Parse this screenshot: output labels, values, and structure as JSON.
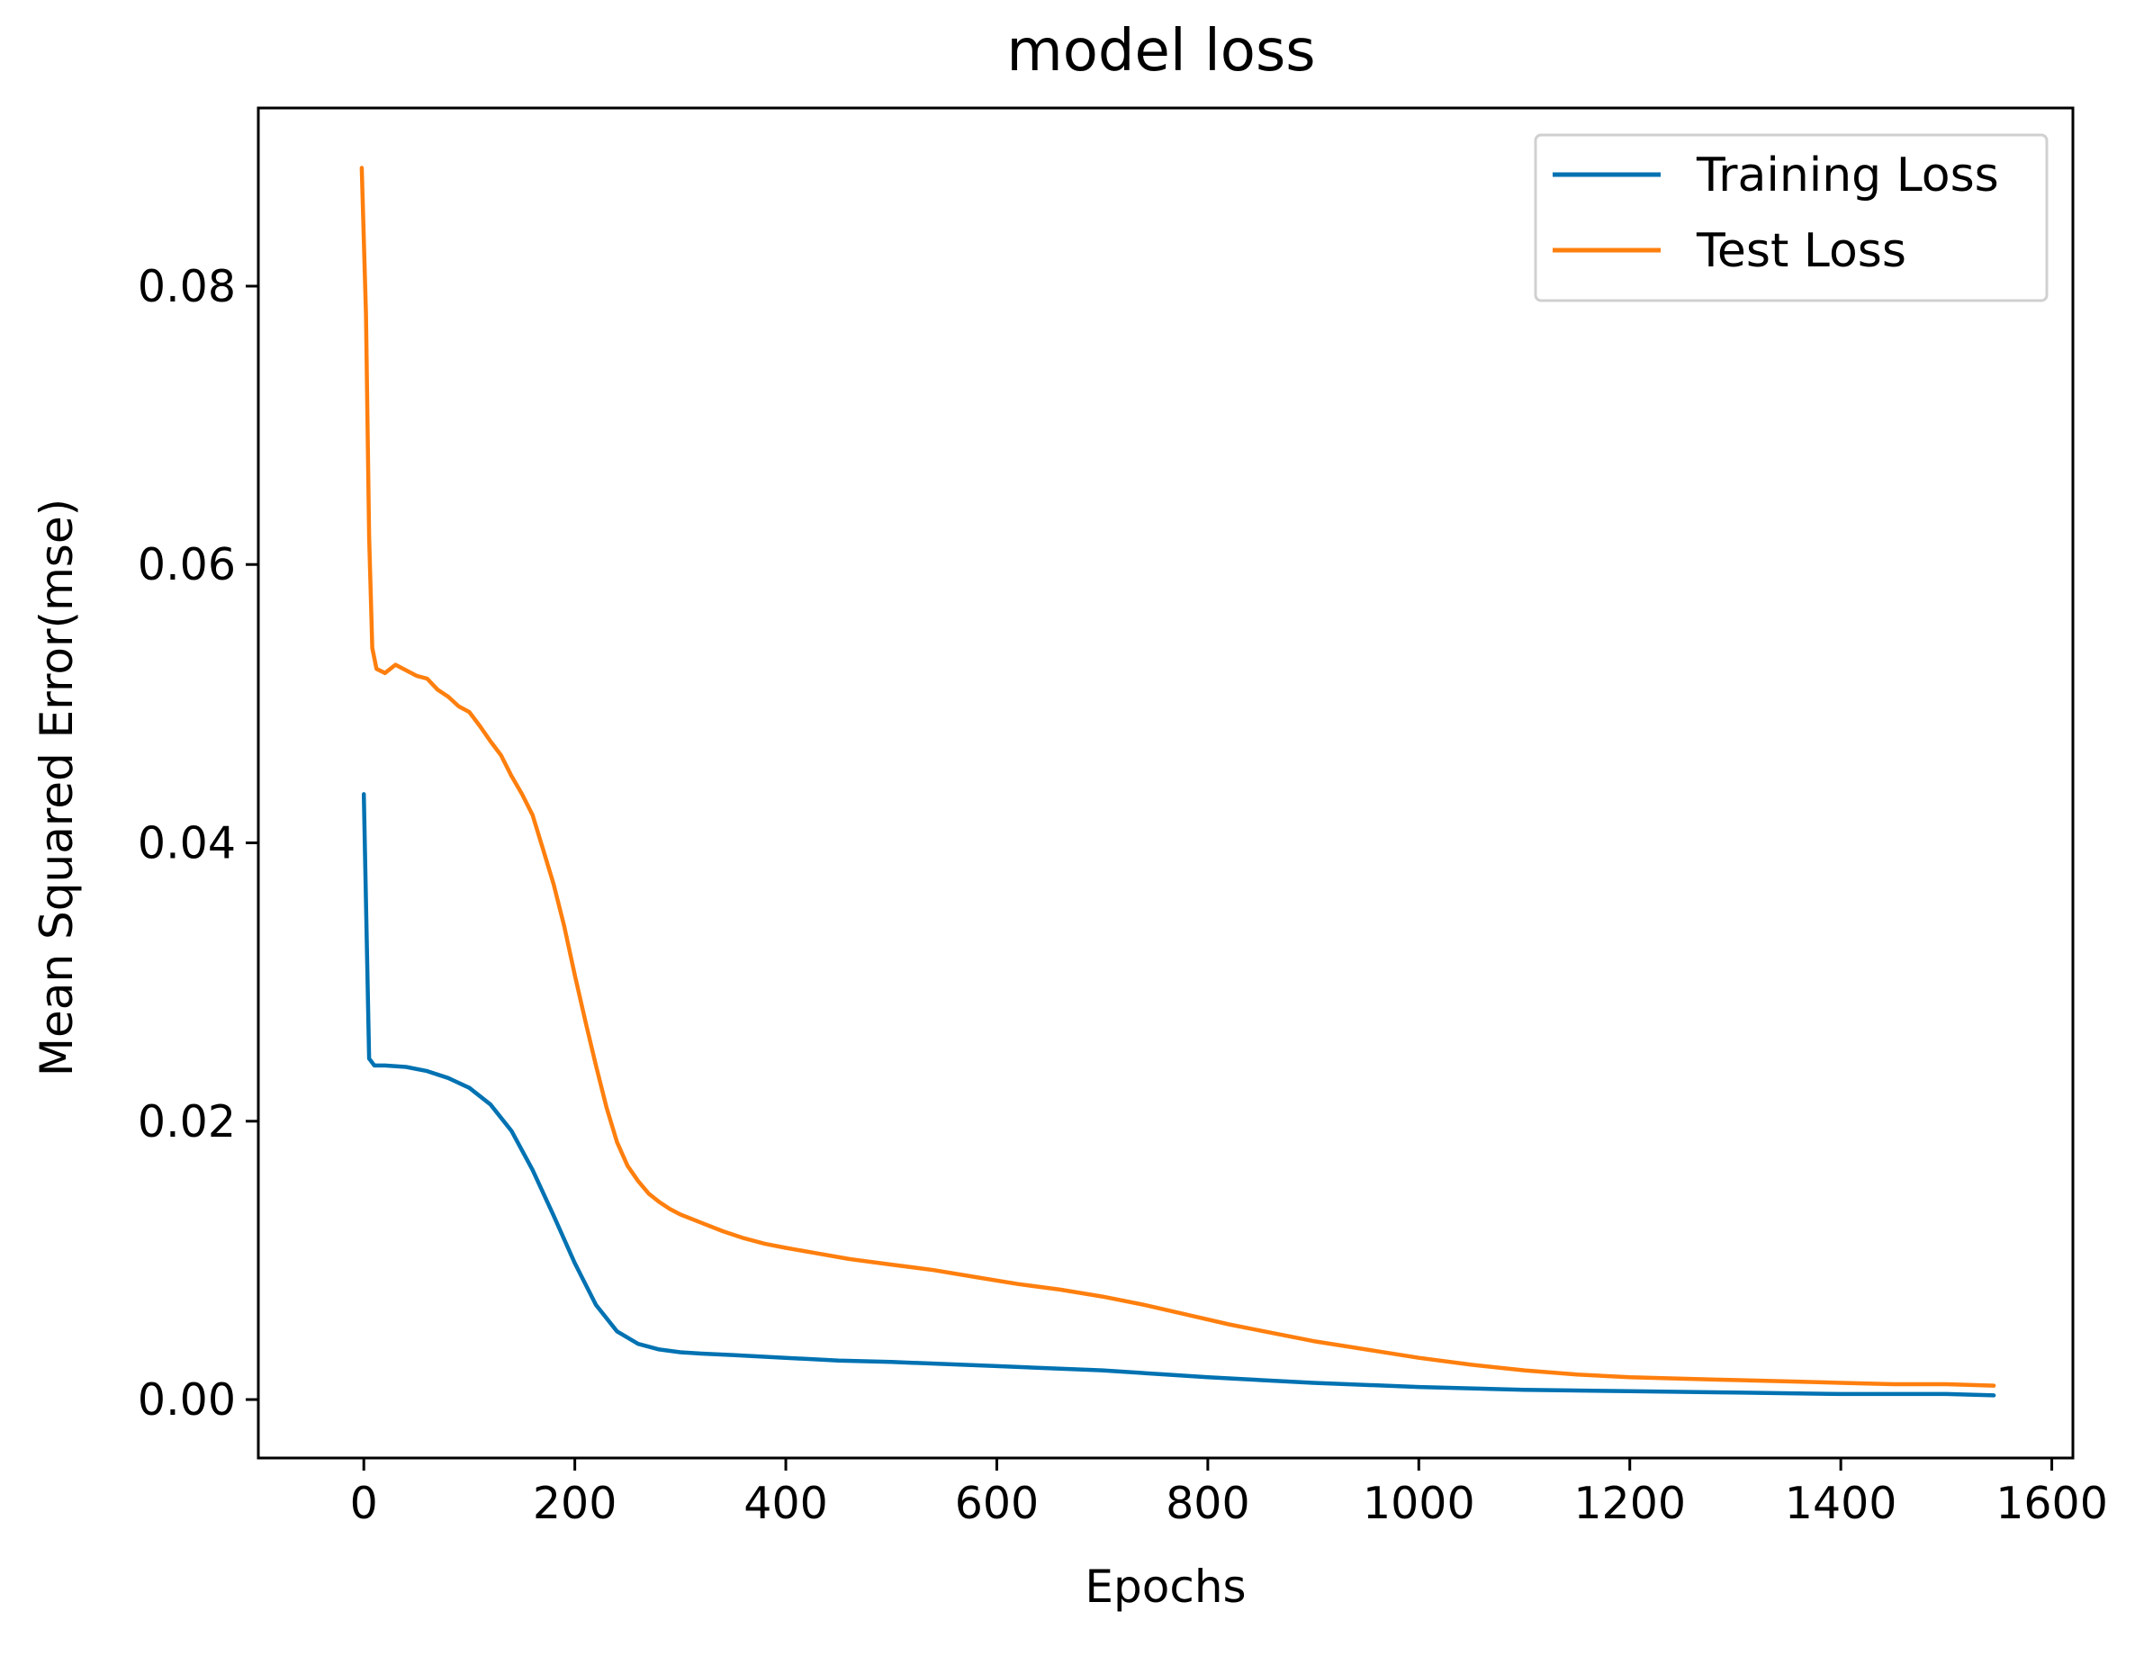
{
  "chart_data": {
    "type": "line",
    "title": "model loss",
    "xlabel": "Epochs",
    "ylabel": "Mean Squared Error(mse)",
    "xlim": [
      -100,
      1620
    ],
    "ylim": [
      -0.0042,
      0.0928
    ],
    "xticks": [
      0,
      200,
      400,
      600,
      800,
      1000,
      1200,
      1400,
      1600
    ],
    "xtick_labels": [
      "0",
      "200",
      "400",
      "600",
      "800",
      "1000",
      "1200",
      "1400",
      "1600"
    ],
    "yticks": [
      0.0,
      0.02,
      0.04,
      0.06,
      0.08
    ],
    "ytick_labels": [
      "0.00",
      "0.02",
      "0.04",
      "0.06",
      "0.08"
    ],
    "grid": false,
    "legend_position": "top-right",
    "series": [
      {
        "name": "Training Loss",
        "color": "#0072b2",
        "x": [
          0,
          5,
          10,
          20,
          40,
          60,
          80,
          100,
          120,
          140,
          160,
          180,
          200,
          220,
          240,
          260,
          280,
          300,
          320,
          350,
          400,
          450,
          500,
          600,
          700,
          800,
          900,
          1000,
          1100,
          1200,
          1300,
          1400,
          1500,
          1545
        ],
        "y": [
          0.0435,
          0.0245,
          0.024,
          0.024,
          0.0239,
          0.0236,
          0.0231,
          0.0224,
          0.0212,
          0.0193,
          0.0165,
          0.0132,
          0.0098,
          0.0068,
          0.0049,
          0.004,
          0.0036,
          0.0034,
          0.0033,
          0.0032,
          0.003,
          0.0028,
          0.0027,
          0.0024,
          0.0021,
          0.0016,
          0.0012,
          0.0009,
          0.0007,
          0.0006,
          0.0005,
          0.0004,
          0.0004,
          0.0003
        ]
      },
      {
        "name": "Test Loss",
        "color": "#ff7f0e",
        "x": [
          -2,
          2,
          5,
          8,
          12,
          20,
          30,
          40,
          50,
          60,
          70,
          80,
          90,
          100,
          110,
          120,
          130,
          140,
          150,
          160,
          170,
          180,
          190,
          200,
          210,
          220,
          230,
          240,
          250,
          260,
          270,
          280,
          290,
          300,
          320,
          340,
          360,
          380,
          400,
          430,
          460,
          500,
          540,
          580,
          620,
          660,
          700,
          740,
          780,
          820,
          860,
          900,
          950,
          1000,
          1050,
          1100,
          1150,
          1200,
          1250,
          1300,
          1350,
          1400,
          1450,
          1500,
          1545
        ],
        "y": [
          0.0885,
          0.078,
          0.062,
          0.054,
          0.0525,
          0.0522,
          0.0528,
          0.0524,
          0.052,
          0.0518,
          0.051,
          0.0505,
          0.0498,
          0.0494,
          0.0484,
          0.0473,
          0.0463,
          0.0448,
          0.0435,
          0.042,
          0.0395,
          0.037,
          0.034,
          0.0305,
          0.0272,
          0.024,
          0.021,
          0.0185,
          0.0168,
          0.0157,
          0.0148,
          0.0142,
          0.0137,
          0.0133,
          0.0127,
          0.0121,
          0.0116,
          0.0112,
          0.0109,
          0.0105,
          0.0101,
          0.0097,
          0.0093,
          0.0088,
          0.0083,
          0.0079,
          0.0074,
          0.0068,
          0.0061,
          0.0054,
          0.0048,
          0.0042,
          0.0036,
          0.003,
          0.0025,
          0.0021,
          0.0018,
          0.0016,
          0.0015,
          0.0014,
          0.0013,
          0.0012,
          0.0011,
          0.0011,
          0.001
        ]
      }
    ]
  }
}
